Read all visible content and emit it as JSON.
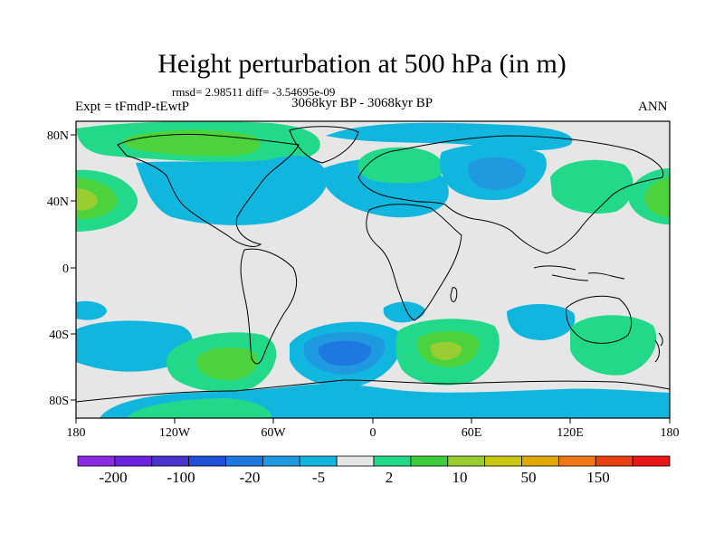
{
  "title": "Height perturbation at 500 hPa (in m)",
  "stats": "rmsd= 2.98511 diff= -3.54695e-09",
  "period": "3068kyr BP - 3068kyr BP",
  "experiment": "Expt = tFmdP-tEwtP",
  "season": "ANN",
  "lat_ticks": [
    "80N",
    "40N",
    "0",
    "40S",
    "80S"
  ],
  "lon_ticks": [
    "180",
    "120W",
    "60W",
    "0",
    "60E",
    "120E",
    "180"
  ],
  "colorbar": {
    "labels": [
      "-200",
      "-100",
      "-20",
      "-5",
      "2",
      "10",
      "50",
      "150"
    ],
    "colors": [
      "#8a2be2",
      "#6a22dd",
      "#4a33cc",
      "#1f4fd6",
      "#1f78e0",
      "#1f9ae0",
      "#11b6df",
      "#e6e6e6",
      "#22d98a",
      "#3ccc3c",
      "#9acd32",
      "#c8c814",
      "#e0a800",
      "#f07818",
      "#e84010",
      "#e81818"
    ]
  },
  "colors": {
    "ocean_bg": "#e6e6e6",
    "pos_light": "#22d98a",
    "pos_mid": "#4cd23c",
    "pos_strong": "#9acd32",
    "neg_light": "#11b6df",
    "neg_mid": "#1f9ae0",
    "neg_strong": "#1f78e0"
  }
}
